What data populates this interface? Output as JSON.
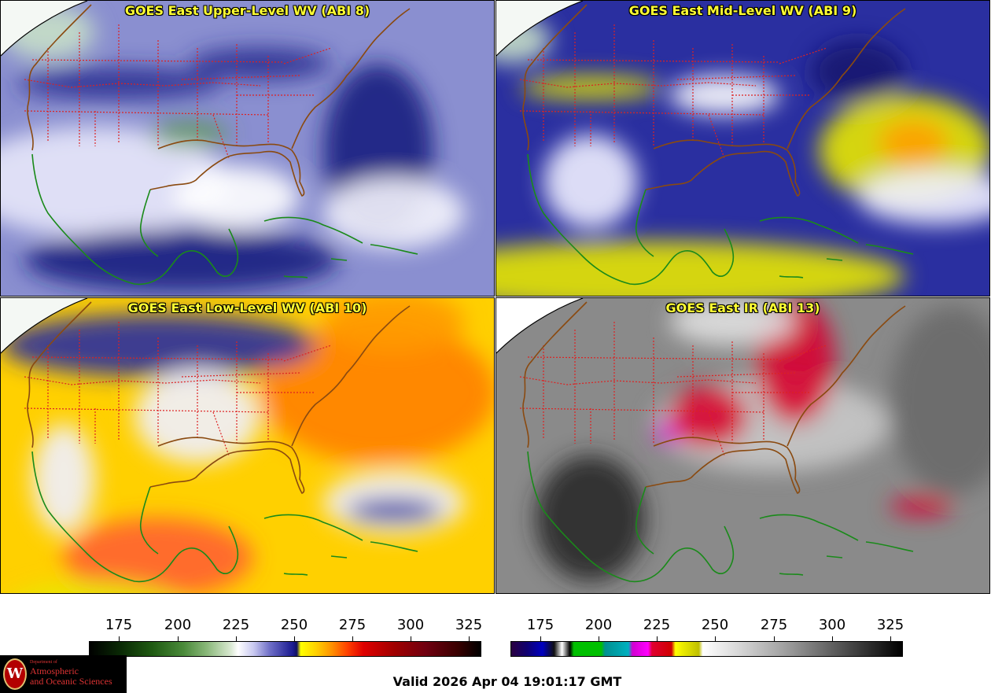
{
  "panels": [
    {
      "title": "GOES East Upper-Level WV (ABI 8)",
      "style": "wv-upper"
    },
    {
      "title": "GOES East Mid-Level WV (ABI 9)",
      "style": "wv-mid"
    },
    {
      "title": "GOES East Low-Level WV (ABI 10)",
      "style": "wv-low"
    },
    {
      "title": "GOES East IR (ABI 13)",
      "style": "ir"
    }
  ],
  "colorbars": {
    "wv": {
      "ticks": [
        "175",
        "200",
        "225",
        "250",
        "275",
        "300",
        "325"
      ]
    },
    "ir": {
      "ticks": [
        "175",
        "200",
        "225",
        "250",
        "275",
        "300",
        "325"
      ]
    }
  },
  "valid_time": "Valid 2026 Apr 04 19:01:17 GMT",
  "logo": {
    "line1": "Department of",
    "line2": "Atmospheric",
    "line3": "and Oceanic Sciences",
    "seal_letter": "W"
  },
  "colors": {
    "border_states": "#dd2222",
    "coastline_us": "#8a4a10",
    "coastline_mx": "#1a8a1a",
    "title": "#ffff33"
  }
}
